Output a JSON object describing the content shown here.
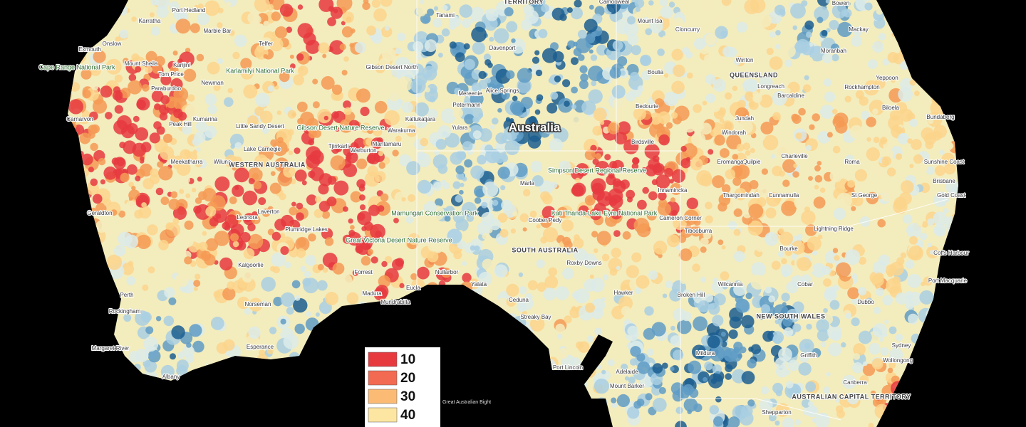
{
  "places": [
    "Port Hedland",
    "Karratha",
    "Marble Bar",
    "Exmouth",
    "Onslow",
    "Cape Range National Park",
    "Tom Price",
    "Mount Sheila",
    "Karijini",
    "Newman",
    "Paraburdoo",
    "Karlamilyi National Park",
    "Telfer",
    "Carnarvon",
    "Peak Hill",
    "Kumarina",
    "Little Sandy Desert",
    "Gibson Desert Nature Reserve",
    "Warburton",
    "Tjirrkarli",
    "Mantamaru",
    "Warakurna",
    "Kaltukatjara",
    "Meekatharra",
    "Wiluna",
    "Lake Carnegie",
    "WESTERN AUSTRALIA",
    "Geraldton",
    "Leonora",
    "Laverton",
    "Plumridge Lakes",
    "Mamungari Conservation Park",
    "Great Victoria Desert Nature Reserve",
    "Kalgoorlie",
    "Forrest",
    "Perth",
    "Rockingham",
    "Norseman",
    "Madura",
    "Mundrabilla",
    "Eucla",
    "Nullarbor",
    "Yalata",
    "Esperance",
    "Margaret River",
    "Albany",
    "Great Australian Bight",
    "Tanami",
    "TERRITORY",
    "Davenport",
    "Gibson Desert North",
    "Alice Springs",
    "Mereenie",
    "Petermann",
    "Yulara",
    "Australia",
    "Camooweal",
    "Mount Isa",
    "Cloncurry",
    "Winton",
    "Boulia",
    "QUEENSLAND",
    "Longreach",
    "Barcaldine",
    "Bedourie",
    "Jundah",
    "Windorah",
    "Birdsville",
    "Rockhampton",
    "Yeppoon",
    "Biloela",
    "Bundaberg",
    "Charleville",
    "Quilpie",
    "Eromanga",
    "Roma",
    "Sunshine Coast",
    "Brisbane",
    "Gold Coast",
    "Thargomindah",
    "Cunnamulla",
    "St George",
    "Innamincka",
    "Marla",
    "Simpson Desert Regional Reserve",
    "Kati Thanda-Lake Eyre National Park",
    "Coober Pedy",
    "SOUTH AUSTRALIA",
    "Roxby Downs",
    "Cameron Corner",
    "Tibooburra",
    "Lightning Ridge",
    "Bourke",
    "Coffs Harbour",
    "Port Macquarie",
    "Broken Hill",
    "Wilcannia",
    "Cobar",
    "Dubbo",
    "Hawker",
    "Ceduna",
    "Streaky Bay",
    "NEW SOUTH WALES",
    "Port Lincoln",
    "Adelaide",
    "Mount Barker",
    "Mildura",
    "Griffith",
    "Sydney",
    "Wollongong",
    "Canberra",
    "AUSTRALIAN CAPITAL TERRITORY",
    "Shepparton",
    "Bowen",
    "Mackay",
    "Moranbah"
  ],
  "legend": {
    "items": [
      {
        "value": 10,
        "color": "#e63a3f"
      },
      {
        "value": 20,
        "color": "#f26a52"
      },
      {
        "value": 30,
        "color": "#fbbb74"
      },
      {
        "value": 40,
        "color": "#fde6a2"
      }
    ]
  }
}
